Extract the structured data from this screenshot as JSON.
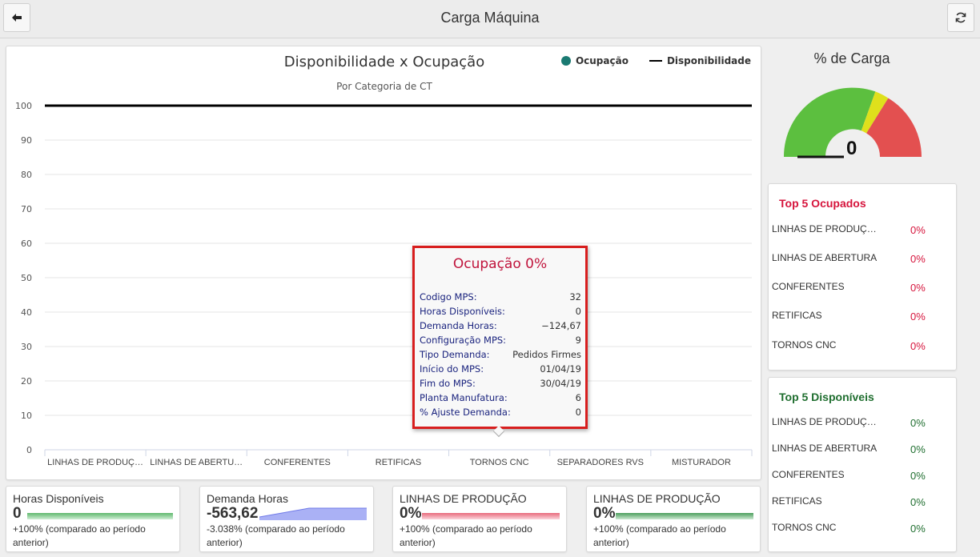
{
  "header": {
    "title": "Carga Máquina",
    "back_icon": "arrow-left-icon",
    "refresh_icon": "refresh-icon"
  },
  "chart": {
    "title": "Disponibilidade x Ocupação",
    "subtitle": "Por Categoria de CT",
    "legend": [
      {
        "label": "Ocupação",
        "color": "#1a7a72",
        "marker": "dot"
      },
      {
        "label": "Disponibilidade",
        "color": "#000000",
        "marker": "line"
      }
    ]
  },
  "chart_data": {
    "type": "line",
    "title": "Disponibilidade x Ocupação",
    "subtitle": "Por Categoria de CT",
    "categories": [
      "LINHAS DE PRODUÇ…",
      "LINHAS DE ABERTU…",
      "CONFERENTES",
      "RETIFICAS",
      "TORNOS CNC",
      "SEPARADORES RVS",
      "MISTURADOR"
    ],
    "yticks": [
      0,
      10,
      20,
      30,
      40,
      50,
      60,
      70,
      80,
      90,
      100
    ],
    "ylim": [
      0,
      100
    ],
    "grid": true,
    "legend_position": "top-right",
    "series": [
      {
        "name": "Ocupação",
        "values": [
          0,
          0,
          0,
          0,
          0,
          0,
          0
        ],
        "color": "#1a7a72"
      },
      {
        "name": "Disponibilidade",
        "values": [
          100,
          100,
          100,
          100,
          100,
          100,
          100
        ],
        "color": "#000000"
      }
    ]
  },
  "tooltip": {
    "title": "Ocupação 0%",
    "rows": [
      {
        "key": "Codigo MPS:",
        "value": "32"
      },
      {
        "key": "Horas Disponíveis:",
        "value": "0"
      },
      {
        "key": "Demanda Horas:",
        "value": "−124,67"
      },
      {
        "key": "Configuração MPS:",
        "value": "9"
      },
      {
        "key": "Tipo Demanda:",
        "value": "Pedidos Firmes"
      },
      {
        "key": "Início do MPS:",
        "value": "01/04/19"
      },
      {
        "key": "Fim do MPS:",
        "value": "30/04/19"
      },
      {
        "key": "Planta Manufatura:",
        "value": "6"
      },
      {
        "key": "% Ajuste Demanda:",
        "value": "0"
      }
    ]
  },
  "gauge": {
    "title": "% de Carga",
    "value": "0",
    "value_fraction": 0,
    "colors": [
      "#5cbf3f",
      "#dfe01c",
      "#e35050"
    ]
  },
  "top_ocupados": {
    "title": "Top 5 Ocupados",
    "color": "#d6143c",
    "items": [
      {
        "name": "LINHAS DE PRODUÇ…",
        "pct": "0%"
      },
      {
        "name": "LINHAS DE ABERTURA",
        "pct": "0%"
      },
      {
        "name": "CONFERENTES",
        "pct": "0%"
      },
      {
        "name": "RETIFICAS",
        "pct": "0%"
      },
      {
        "name": "TORNOS CNC",
        "pct": "0%"
      }
    ]
  },
  "top_disponiveis": {
    "title": "Top 5 Disponíveis",
    "color": "#1f6e2f",
    "items": [
      {
        "name": "LINHAS DE PRODUÇ…",
        "pct": "0%"
      },
      {
        "name": "LINHAS DE ABERTURA",
        "pct": "0%"
      },
      {
        "name": "CONFERENTES",
        "pct": "0%"
      },
      {
        "name": "RETIFICAS",
        "pct": "0%"
      },
      {
        "name": "TORNOS CNC",
        "pct": "0%"
      }
    ]
  },
  "kpis": [
    {
      "title": "Horas Disponíveis",
      "value": "0",
      "note": "+100% (comparado ao período anterior)",
      "bar_color": "#5fb86c"
    },
    {
      "title": "Demanda Horas",
      "value": "-563,62",
      "note": "-3.038% (comparado ao período anterior)",
      "bar_color": "#8f98ef"
    },
    {
      "title": "LINHAS DE PRODUÇÃO",
      "value": "0%",
      "note": "+100% (comparado ao período anterior)",
      "bar_color": "#e86a7c"
    },
    {
      "title": "LINHAS DE PRODUÇÃO",
      "value": "0%",
      "note": "+100% (comparado ao período anterior)",
      "bar_color": "#4a9e5c"
    }
  ]
}
